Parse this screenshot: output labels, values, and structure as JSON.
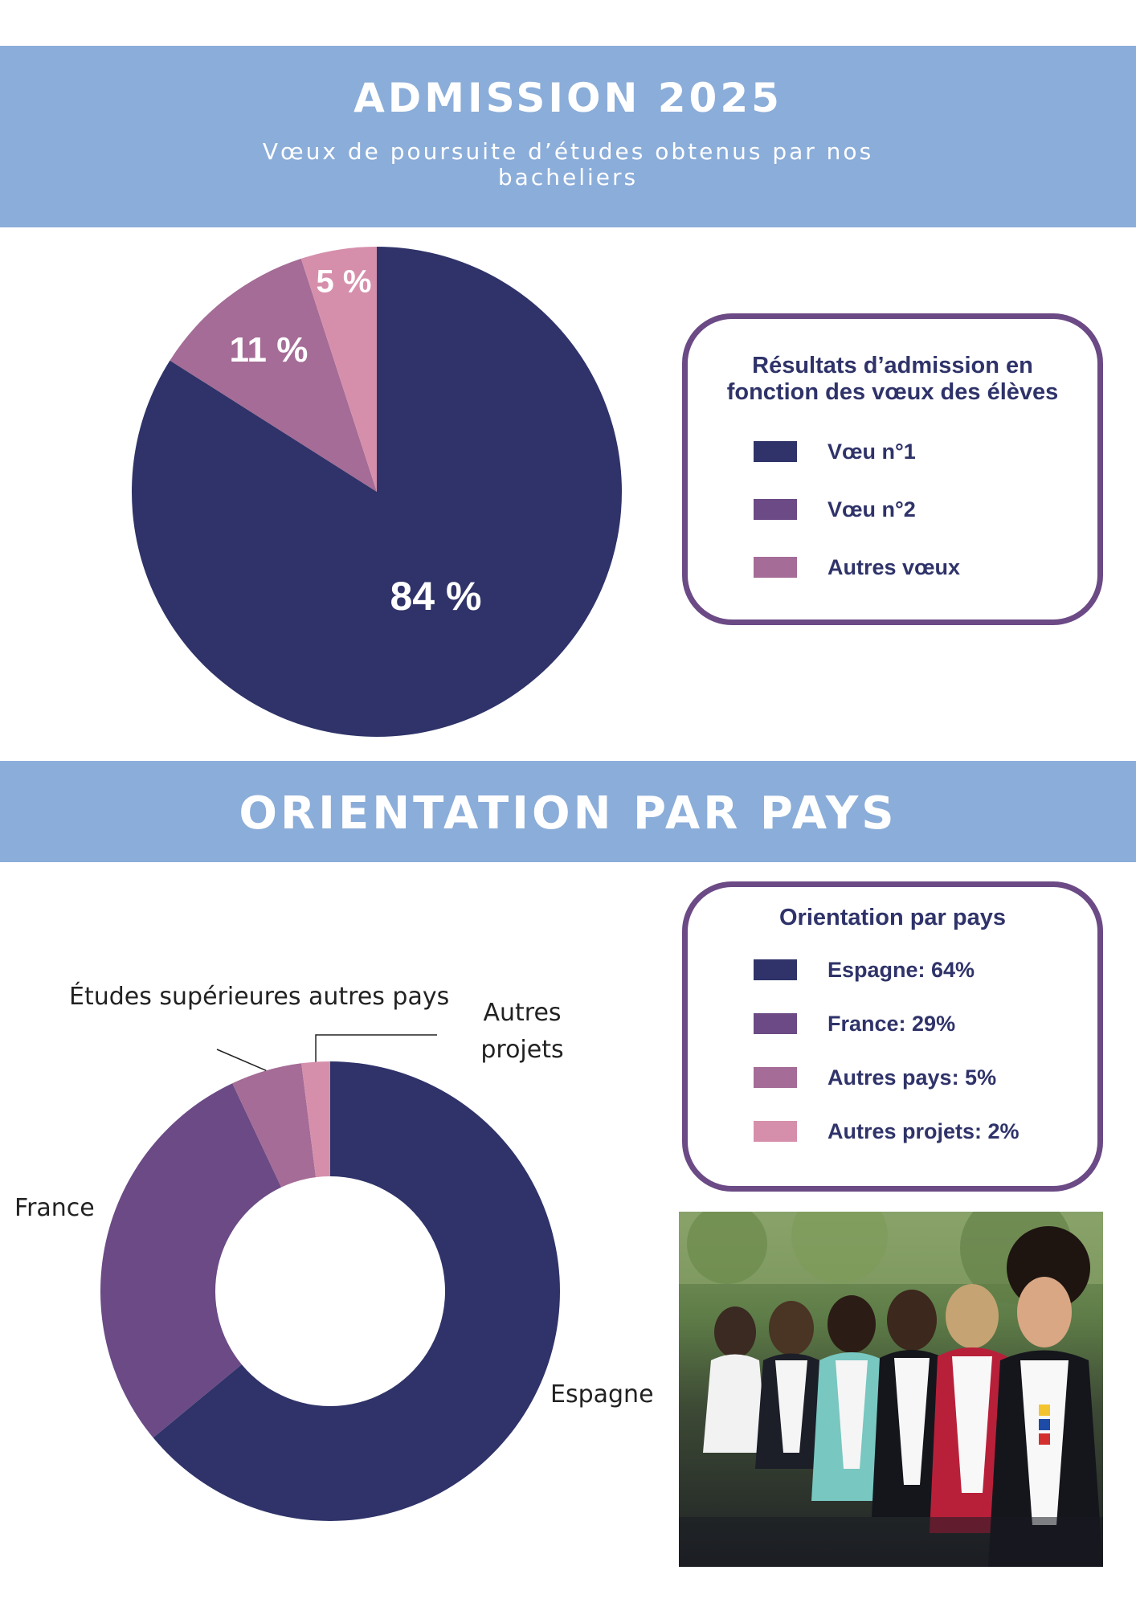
{
  "header": {
    "title": "ADMISSION 2025",
    "subtitle": "Vœux de poursuite d’études obtenus par nos bacheliers"
  },
  "section2": {
    "title": "ORIENTATION PAR PAYS"
  },
  "colors": {
    "band": "#8badd9",
    "navy": "#2f3369",
    "purple": "#6b4a85",
    "mauve": "#a46c96",
    "pink": "#d68fab",
    "border": "#6b4a85"
  },
  "legend1": {
    "title": "Résultats d’admission en fonction des vœux des élèves",
    "items": [
      {
        "label": "Vœu n°1",
        "color": "#2f3369"
      },
      {
        "label": "Vœu n°2",
        "color": "#6b4a85"
      },
      {
        "label": "Autres vœux",
        "color": "#a46c96"
      }
    ]
  },
  "legend2": {
    "title": "Orientation par pays",
    "items": [
      {
        "label": "Espagne: 64%",
        "color": "#2f3369"
      },
      {
        "label": "France: 29%",
        "color": "#6b4a85"
      },
      {
        "label": "Autres pays: 5%",
        "color": "#a46c96"
      },
      {
        "label": "Autres projets: 2%",
        "color": "#d68fab"
      }
    ]
  },
  "photo": {
    "alt_icon": "graduates-photo-icon"
  },
  "chart_data": [
    {
      "type": "pie",
      "categories": [
        "Vœu n°1",
        "Vœu n°2",
        "Autres vœux"
      ],
      "values": [
        84,
        11,
        5
      ],
      "data_labels": [
        "84 %",
        "11 %",
        "5 %"
      ],
      "colors": [
        "#2f3369",
        "#a46c96",
        "#d68fab"
      ],
      "legend": "right",
      "title": ""
    },
    {
      "type": "pie",
      "style": "donut",
      "categories": [
        "Espagne",
        "France",
        "Études supérieures autres pays",
        "Autres projets"
      ],
      "values": [
        64,
        29,
        5,
        2
      ],
      "slice_labels": [
        "Espagne",
        "France",
        "Études supérieures autres pays",
        "Autres projets"
      ],
      "colors": [
        "#2f3369",
        "#6b4a85",
        "#a46c96",
        "#d68fab"
      ],
      "legend": "right",
      "title": ""
    }
  ]
}
